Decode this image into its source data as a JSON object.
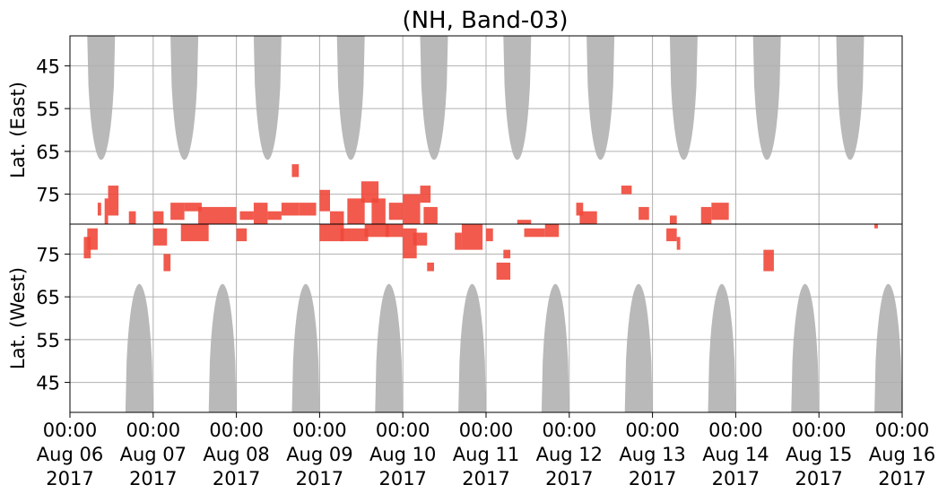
{
  "chart_data": {
    "type": "heatmap",
    "title": "(NH, Band-03)",
    "panels": [
      {
        "name": "east",
        "ylabel": "Lat. (East)",
        "yticks": [
          45,
          55,
          65,
          75
        ],
        "ylim_top": 38,
        "ylim_bottom": 82
      },
      {
        "name": "west",
        "ylabel": "Lat. (West)",
        "yticks": [
          75,
          65,
          55,
          45
        ],
        "ylim_top": 82,
        "ylim_bottom": 38
      }
    ],
    "xlim": [
      "2017-08-06 00:00",
      "2017-08-16 00:00"
    ],
    "xticks": [
      {
        "time": "00:00",
        "date": "Aug 06",
        "year": "2017"
      },
      {
        "time": "00:00",
        "date": "Aug 07",
        "year": "2017"
      },
      {
        "time": "00:00",
        "date": "Aug 08",
        "year": "2017"
      },
      {
        "time": "00:00",
        "date": "Aug 09",
        "year": "2017"
      },
      {
        "time": "00:00",
        "date": "Aug 10",
        "year": "2017"
      },
      {
        "time": "00:00",
        "date": "Aug 11",
        "year": "2017"
      },
      {
        "time": "00:00",
        "date": "Aug 12",
        "year": "2017"
      },
      {
        "time": "00:00",
        "date": "Aug 13",
        "year": "2017"
      },
      {
        "time": "00:00",
        "date": "Aug 14",
        "year": "2017"
      },
      {
        "time": "00:00",
        "date": "Aug 15",
        "year": "2017"
      },
      {
        "time": "00:00",
        "date": "Aug 16",
        "year": "2017"
      }
    ],
    "grid": true,
    "colors": {
      "events": "#f0483a",
      "coverage": "#b9b9b9",
      "grid": "#b0b0b0",
      "axis": "#000000"
    },
    "coverage_east": [
      {
        "start": "2017-08-06 05:00",
        "end": "2017-08-06 13:00",
        "min_lat": 67
      },
      {
        "start": "2017-08-07 05:00",
        "end": "2017-08-07 13:00",
        "min_lat": 67
      },
      {
        "start": "2017-08-08 05:00",
        "end": "2017-08-08 13:00",
        "min_lat": 67
      },
      {
        "start": "2017-08-09 05:00",
        "end": "2017-08-09 13:00",
        "min_lat": 67
      },
      {
        "start": "2017-08-10 05:00",
        "end": "2017-08-10 13:00",
        "min_lat": 67
      },
      {
        "start": "2017-08-11 05:00",
        "end": "2017-08-11 13:00",
        "min_lat": 67
      },
      {
        "start": "2017-08-12 05:00",
        "end": "2017-08-12 13:00",
        "min_lat": 67
      },
      {
        "start": "2017-08-13 05:00",
        "end": "2017-08-13 13:00",
        "min_lat": 67
      },
      {
        "start": "2017-08-14 05:00",
        "end": "2017-08-14 13:00",
        "min_lat": 67
      },
      {
        "start": "2017-08-15 05:00",
        "end": "2017-08-15 13:00",
        "min_lat": 67
      }
    ],
    "coverage_west": [
      {
        "start": "2017-08-06 16:00",
        "end": "2017-08-07 00:00",
        "min_lat": 68
      },
      {
        "start": "2017-08-07 16:00",
        "end": "2017-08-08 00:00",
        "min_lat": 68
      },
      {
        "start": "2017-08-08 16:00",
        "end": "2017-08-09 00:00",
        "min_lat": 68
      },
      {
        "start": "2017-08-09 16:00",
        "end": "2017-08-10 00:00",
        "min_lat": 68
      },
      {
        "start": "2017-08-10 16:00",
        "end": "2017-08-11 00:00",
        "min_lat": 68
      },
      {
        "start": "2017-08-11 16:00",
        "end": "2017-08-12 00:00",
        "min_lat": 68
      },
      {
        "start": "2017-08-12 16:00",
        "end": "2017-08-13 00:00",
        "min_lat": 68
      },
      {
        "start": "2017-08-13 16:00",
        "end": "2017-08-14 00:00",
        "min_lat": 68
      },
      {
        "start": "2017-08-14 16:00",
        "end": "2017-08-15 00:00",
        "min_lat": 68
      },
      {
        "start": "2017-08-15 16:00",
        "end": "2017-08-16 00:00",
        "min_lat": 68
      }
    ],
    "events_east": [
      {
        "start": "2017-08-06 08:00",
        "end": "2017-08-06 09:00",
        "lat_min": 77,
        "lat_max": 80
      },
      {
        "start": "2017-08-06 10:00",
        "end": "2017-08-06 11:00",
        "lat_min": 76,
        "lat_max": 82
      },
      {
        "start": "2017-08-06 11:00",
        "end": "2017-08-06 14:00",
        "lat_min": 73,
        "lat_max": 80
      },
      {
        "start": "2017-08-06 17:00",
        "end": "2017-08-06 19:00",
        "lat_min": 79,
        "lat_max": 82
      },
      {
        "start": "2017-08-07 00:00",
        "end": "2017-08-07 03:00",
        "lat_min": 79,
        "lat_max": 82
      },
      {
        "start": "2017-08-07 05:00",
        "end": "2017-08-07 09:00",
        "lat_min": 77,
        "lat_max": 81
      },
      {
        "start": "2017-08-07 09:00",
        "end": "2017-08-07 14:00",
        "lat_min": 77,
        "lat_max": 79
      },
      {
        "start": "2017-08-07 13:00",
        "end": "2017-08-08 00:00",
        "lat_min": 78,
        "lat_max": 82
      },
      {
        "start": "2017-08-08 01:00",
        "end": "2017-08-08 05:00",
        "lat_min": 79,
        "lat_max": 81
      },
      {
        "start": "2017-08-08 05:00",
        "end": "2017-08-08 09:00",
        "lat_min": 77,
        "lat_max": 82
      },
      {
        "start": "2017-08-08 09:00",
        "end": "2017-08-08 13:00",
        "lat_min": 79,
        "lat_max": 81
      },
      {
        "start": "2017-08-08 13:00",
        "end": "2017-08-08 18:00",
        "lat_min": 77,
        "lat_max": 80
      },
      {
        "start": "2017-08-08 16:00",
        "end": "2017-08-08 18:00",
        "lat_min": 68,
        "lat_max": 71
      },
      {
        "start": "2017-08-08 18:00",
        "end": "2017-08-08 23:00",
        "lat_min": 77,
        "lat_max": 80
      },
      {
        "start": "2017-08-09 00:00",
        "end": "2017-08-09 03:00",
        "lat_min": 74,
        "lat_max": 79
      },
      {
        "start": "2017-08-09 03:00",
        "end": "2017-08-09 07:00",
        "lat_min": 79,
        "lat_max": 82
      },
      {
        "start": "2017-08-09 08:00",
        "end": "2017-08-09 13:00",
        "lat_min": 76,
        "lat_max": 82
      },
      {
        "start": "2017-08-09 12:00",
        "end": "2017-08-09 17:00",
        "lat_min": 72,
        "lat_max": 77
      },
      {
        "start": "2017-08-09 15:00",
        "end": "2017-08-09 19:00",
        "lat_min": 76,
        "lat_max": 82
      },
      {
        "start": "2017-08-09 20:00",
        "end": "2017-08-10 00:00",
        "lat_min": 77,
        "lat_max": 81
      },
      {
        "start": "2017-08-10 00:00",
        "end": "2017-08-10 05:00",
        "lat_min": 75,
        "lat_max": 82
      },
      {
        "start": "2017-08-10 05:00",
        "end": "2017-08-10 08:00",
        "lat_min": 73,
        "lat_max": 77
      },
      {
        "start": "2017-08-10 06:00",
        "end": "2017-08-10 10:00",
        "lat_min": 78,
        "lat_max": 82
      },
      {
        "start": "2017-08-11 09:00",
        "end": "2017-08-11 13:00",
        "lat_min": 81,
        "lat_max": 82
      },
      {
        "start": "2017-08-12 02:00",
        "end": "2017-08-12 04:00",
        "lat_min": 77,
        "lat_max": 80
      },
      {
        "start": "2017-08-12 03:00",
        "end": "2017-08-12 08:00",
        "lat_min": 79,
        "lat_max": 82
      },
      {
        "start": "2017-08-12 15:00",
        "end": "2017-08-12 18:00",
        "lat_min": 73,
        "lat_max": 75
      },
      {
        "start": "2017-08-12 20:00",
        "end": "2017-08-12 23:00",
        "lat_min": 78,
        "lat_max": 81
      },
      {
        "start": "2017-08-13 05:00",
        "end": "2017-08-13 07:00",
        "lat_min": 80,
        "lat_max": 82
      },
      {
        "start": "2017-08-13 14:00",
        "end": "2017-08-13 17:00",
        "lat_min": 78,
        "lat_max": 82
      },
      {
        "start": "2017-08-13 17:00",
        "end": "2017-08-13 22:00",
        "lat_min": 77,
        "lat_max": 81
      }
    ],
    "events_west": [
      {
        "start": "2017-08-06 04:00",
        "end": "2017-08-06 06:00",
        "lat_min": 74,
        "lat_max": 79
      },
      {
        "start": "2017-08-06 05:00",
        "end": "2017-08-06 08:00",
        "lat_min": 76,
        "lat_max": 81
      },
      {
        "start": "2017-08-07 00:00",
        "end": "2017-08-07 04:00",
        "lat_min": 77,
        "lat_max": 81
      },
      {
        "start": "2017-08-07 03:00",
        "end": "2017-08-07 05:00",
        "lat_min": 71,
        "lat_max": 75
      },
      {
        "start": "2017-08-07 08:00",
        "end": "2017-08-07 16:00",
        "lat_min": 78,
        "lat_max": 82
      },
      {
        "start": "2017-08-08 00:00",
        "end": "2017-08-08 03:00",
        "lat_min": 78,
        "lat_max": 81
      },
      {
        "start": "2017-08-09 00:00",
        "end": "2017-08-09 07:00",
        "lat_min": 78,
        "lat_max": 82
      },
      {
        "start": "2017-08-09 06:00",
        "end": "2017-08-09 14:00",
        "lat_min": 78,
        "lat_max": 81
      },
      {
        "start": "2017-08-09 13:00",
        "end": "2017-08-09 20:00",
        "lat_min": 79,
        "lat_max": 82
      },
      {
        "start": "2017-08-09 19:00",
        "end": "2017-08-10 00:00",
        "lat_min": 79,
        "lat_max": 82
      },
      {
        "start": "2017-08-10 00:00",
        "end": "2017-08-10 04:00",
        "lat_min": 74,
        "lat_max": 81
      },
      {
        "start": "2017-08-10 03:00",
        "end": "2017-08-10 07:00",
        "lat_min": 77,
        "lat_max": 80
      },
      {
        "start": "2017-08-10 07:00",
        "end": "2017-08-10 09:00",
        "lat_min": 71,
        "lat_max": 73
      },
      {
        "start": "2017-08-10 15:00",
        "end": "2017-08-10 17:00",
        "lat_min": 76,
        "lat_max": 80
      },
      {
        "start": "2017-08-10 17:00",
        "end": "2017-08-10 23:00",
        "lat_min": 76,
        "lat_max": 82
      },
      {
        "start": "2017-08-11 00:00",
        "end": "2017-08-11 02:00",
        "lat_min": 78,
        "lat_max": 81
      },
      {
        "start": "2017-08-11 03:00",
        "end": "2017-08-11 07:00",
        "lat_min": 69,
        "lat_max": 73
      },
      {
        "start": "2017-08-11 05:00",
        "end": "2017-08-11 07:00",
        "lat_min": 74,
        "lat_max": 76
      },
      {
        "start": "2017-08-11 11:00",
        "end": "2017-08-11 17:00",
        "lat_min": 79,
        "lat_max": 81
      },
      {
        "start": "2017-08-11 17:00",
        "end": "2017-08-11 21:00",
        "lat_min": 79,
        "lat_max": 82
      },
      {
        "start": "2017-08-13 04:00",
        "end": "2017-08-13 07:00",
        "lat_min": 78,
        "lat_max": 81
      },
      {
        "start": "2017-08-13 07:00",
        "end": "2017-08-13 08:00",
        "lat_min": 76,
        "lat_max": 79
      },
      {
        "start": "2017-08-14 08:00",
        "end": "2017-08-14 11:00",
        "lat_min": 71,
        "lat_max": 76
      },
      {
        "start": "2017-08-15 16:00",
        "end": "2017-08-15 17:00",
        "lat_min": 81,
        "lat_max": 82
      }
    ]
  }
}
